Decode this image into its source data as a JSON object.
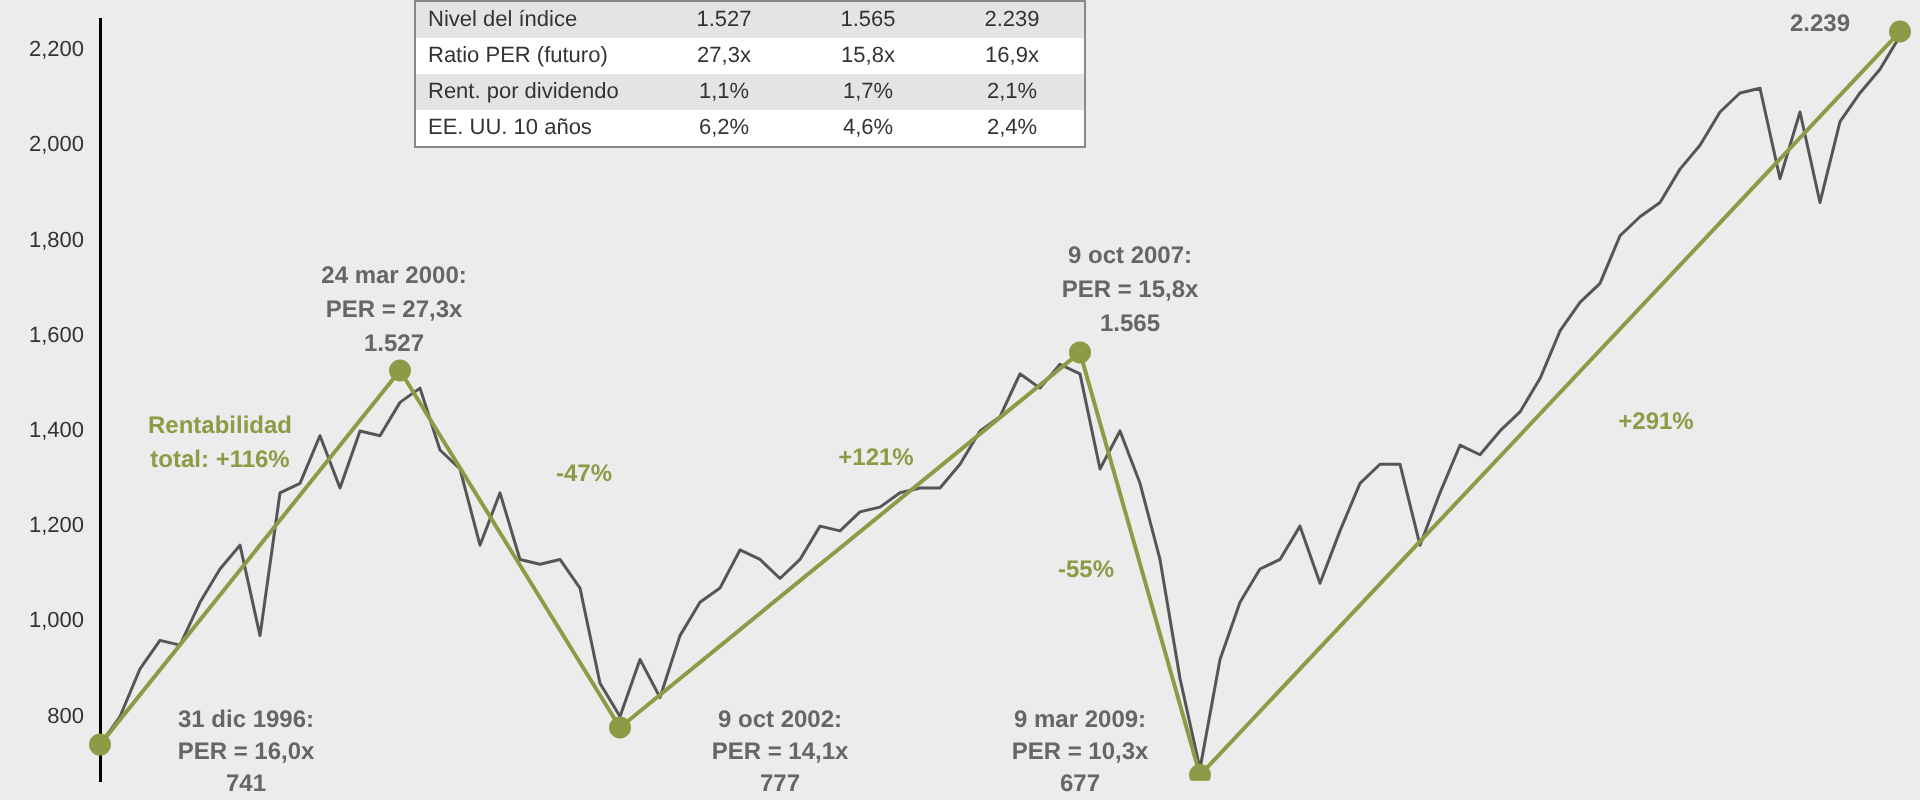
{
  "chart_data": {
    "type": "line",
    "categories": [
      null,
      null,
      null,
      null,
      null,
      null,
      null,
      null,
      null,
      null,
      null,
      null,
      null,
      null,
      null,
      null,
      null,
      null,
      null,
      null,
      null,
      null,
      null,
      null,
      null,
      null,
      null,
      null,
      null,
      null,
      null,
      null,
      null,
      null,
      null,
      null,
      null,
      null,
      null,
      null,
      null,
      null,
      null,
      null,
      null,
      null,
      null,
      null,
      null,
      null,
      null,
      null,
      null,
      null,
      null,
      null,
      null,
      null,
      null,
      null,
      null,
      null,
      null,
      null,
      null,
      null,
      null,
      null,
      null,
      null,
      null,
      null,
      null,
      null,
      null,
      null,
      null,
      null,
      null,
      null,
      null,
      null,
      null,
      null,
      null,
      null,
      null,
      null,
      null,
      null,
      null
    ],
    "series": [
      {
        "color": "#555555",
        "values": [
          741,
          800,
          900,
          960,
          950,
          1040,
          1110,
          1160,
          970,
          1270,
          1290,
          1390,
          1280,
          1400,
          1390,
          1460,
          1490,
          1360,
          1320,
          1160,
          1270,
          1130,
          1120,
          1130,
          1070,
          870,
          800,
          920,
          840,
          970,
          1040,
          1070,
          1150,
          1130,
          1090,
          1130,
          1200,
          1190,
          1230,
          1240,
          1270,
          1280,
          1280,
          1330,
          1400,
          1430,
          1520,
          1490,
          1540,
          1520,
          1320,
          1400,
          1290,
          1130,
          880,
          690,
          920,
          1040,
          1110,
          1130,
          1200,
          1080,
          1190,
          1290,
          1330,
          1330,
          1160,
          1270,
          1370,
          1350,
          1400,
          1440,
          1510,
          1610,
          1670,
          1710,
          1810,
          1850,
          1880,
          1950,
          2000,
          2070,
          2110,
          2120,
          1930,
          2070,
          1880,
          2050,
          2110,
          2160,
          2230
        ]
      },
      {
        "color": "#8c9b45",
        "marker": "circle",
        "values": [
          741,
          null,
          null,
          null,
          null,
          null,
          null,
          null,
          null,
          null,
          null,
          null,
          null,
          null,
          null,
          1527,
          null,
          null,
          null,
          null,
          null,
          null,
          null,
          null,
          null,
          null,
          777,
          null,
          null,
          null,
          null,
          null,
          null,
          null,
          null,
          null,
          null,
          null,
          null,
          null,
          null,
          null,
          null,
          null,
          null,
          null,
          null,
          null,
          null,
          1565,
          null,
          null,
          null,
          null,
          null,
          677,
          null,
          null,
          null,
          null,
          null,
          null,
          null,
          null,
          null,
          null,
          null,
          null,
          null,
          null,
          null,
          null,
          null,
          null,
          null,
          null,
          null,
          null,
          null,
          null,
          null,
          null,
          null,
          null,
          null,
          null,
          null,
          null,
          null,
          null,
          2239
        ]
      }
    ],
    "ylim": [
      665,
      2265
    ],
    "yticks": [
      {
        "value": 800,
        "label": "800"
      },
      {
        "value": 1000,
        "label": "1,000"
      },
      {
        "value": 1200,
        "label": "1,200"
      },
      {
        "value": 1400,
        "label": "1,400"
      },
      {
        "value": 1600,
        "label": "1,600"
      },
      {
        "value": 1800,
        "label": "1,800"
      },
      {
        "value": 2000,
        "label": "2,000"
      },
      {
        "value": 2200,
        "label": "2,200"
      }
    ],
    "tick_labels": "y",
    "grid": false,
    "legend": false,
    "annotations": [
      "Nivel del índice",
      "1.527",
      "1.565",
      "2.239",
      "Ratio PER (futuro)",
      "27,3x",
      "15,8x",
      "16,9x",
      "Rent. por dividendo",
      "1,1%",
      "1,7%",
      "2,1%",
      "EE. UU. 10 años",
      "6,2%",
      "4,6%",
      "2,4%",
      "24 mar 2000:",
      "PER = 27,3x",
      "1.527",
      "9 oct 2007:",
      "PER = 15,8x",
      "1.565",
      "31 dic 1996:",
      "PER = 16,0x",
      "741",
      "9 oct 2002:",
      "PER = 14,1x",
      "777",
      "9 mar 2009:",
      "PER = 10,3x",
      "677",
      "2.239",
      "Rentabilidad",
      "total: +116%",
      "-47%",
      "+121%",
      "-55%",
      "+291%"
    ]
  }
}
